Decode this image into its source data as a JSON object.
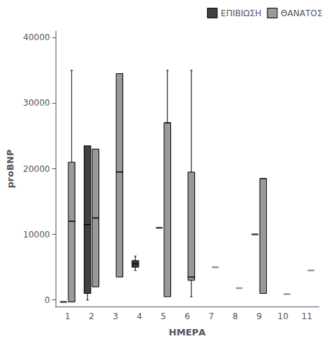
{
  "chart_data": {
    "type": "boxplot",
    "xlabel": "ΗΜΕΡΑ",
    "ylabel": "proBNP",
    "categories": [
      "1",
      "2",
      "3",
      "4",
      "5",
      "6",
      "7",
      "8",
      "9",
      "10",
      "11"
    ],
    "series": [
      {
        "name": "ΕΠΙΒΙΩΣΗ",
        "color": "#404040",
        "values": [
          -300,
          {
            "whislo": 0,
            "q1": 1000,
            "med": 11500,
            "q3": 23500,
            "whishi": 23500
          },
          null,
          {
            "whislo": 4500,
            "q1": 5000,
            "med": 5500,
            "q3": 6000,
            "whishi": 6700
          },
          11000,
          null,
          null,
          null,
          10000,
          null,
          null
        ]
      },
      {
        "name": "ΘΑΝΑΤΟΣ",
        "color": "#999999",
        "values": [
          {
            "whislo": -300,
            "q1": -300,
            "med": 12000,
            "q3": 21000,
            "whishi": 35000
          },
          {
            "whislo": 2000,
            "q1": 2000,
            "med": 12500,
            "q3": 23000,
            "whishi": 23000
          },
          {
            "whislo": 3500,
            "q1": 3500,
            "med": 19500,
            "q3": 34500,
            "whishi": 34500
          },
          null,
          {
            "whislo": 500,
            "q1": 500,
            "med": 27000,
            "q3": 27000,
            "whishi": 35000
          },
          {
            "whislo": 500,
            "q1": 3000,
            "med": 3500,
            "q3": 19500,
            "whishi": 35000
          },
          5000,
          1800,
          {
            "whislo": 1000,
            "q1": 1000,
            "med": 18500,
            "q3": 18500,
            "whishi": 18500
          },
          900,
          4500
        ]
      }
    ],
    "ylim": [
      -1000,
      41000
    ],
    "yticks": [
      0,
      10000,
      20000,
      30000,
      40000
    ],
    "legend": "upper right",
    "grid": false
  }
}
